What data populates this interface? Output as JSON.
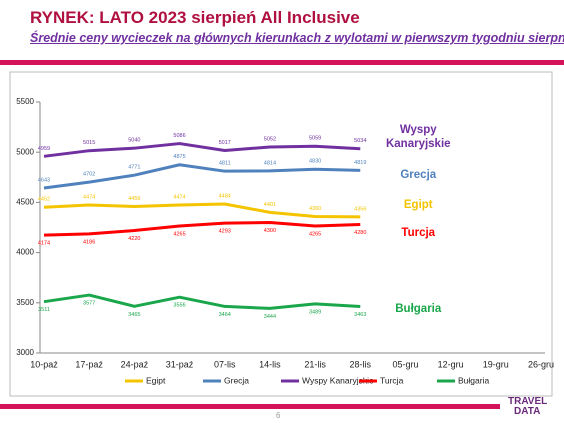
{
  "title": "RYNEK: LATO 2023 sierpień All Inclusive",
  "subtitle": "Średnie ceny wycieczek na głównych kierunkach z wylotami w pierwszym tygodniu sierpnia",
  "chart_data": {
    "type": "line",
    "categories": [
      "10-paź",
      "17-paź",
      "24-paź",
      "31-paź",
      "07-lis",
      "14-lis",
      "21-lis",
      "28-lis",
      "05-gru",
      "12-gru",
      "19-gru",
      "26-gru"
    ],
    "series": [
      {
        "name": "Egipt",
        "color": "#f5c400",
        "values": [
          4452,
          4474,
          4459,
          4474,
          4484,
          4401,
          4360,
          4356,
          null,
          null,
          null,
          null
        ]
      },
      {
        "name": "Grecja",
        "color": "#4f81bd",
        "values": [
          4643,
          4702,
          4771,
          4875,
          4811,
          4814,
          4830,
          4819,
          null,
          null,
          null,
          null
        ]
      },
      {
        "name": "Wyspy Kanaryjskie",
        "color": "#7030a0",
        "values": [
          4959,
          5015,
          5040,
          5086,
          5017,
          5052,
          5059,
          5034,
          null,
          null,
          null,
          null
        ]
      },
      {
        "name": "Turcja",
        "color": "#ff0000",
        "values": [
          4174,
          4186,
          4220,
          4265,
          4293,
          4300,
          4265,
          4280,
          null,
          null,
          null,
          null
        ]
      },
      {
        "name": "Bułgaria",
        "color": "#1aa64a",
        "values": [
          3511,
          3577,
          3465,
          3556,
          3464,
          3444,
          3489,
          3463,
          null,
          null,
          null,
          null
        ]
      }
    ],
    "ylim": [
      3000,
      5500
    ],
    "yticks": [
      3000,
      3500,
      4000,
      4500,
      5000,
      5500
    ],
    "grid": false,
    "legend": "bottom"
  },
  "footer": {
    "page_number": "6",
    "logo": [
      "TRAVEL",
      "DATA"
    ]
  }
}
